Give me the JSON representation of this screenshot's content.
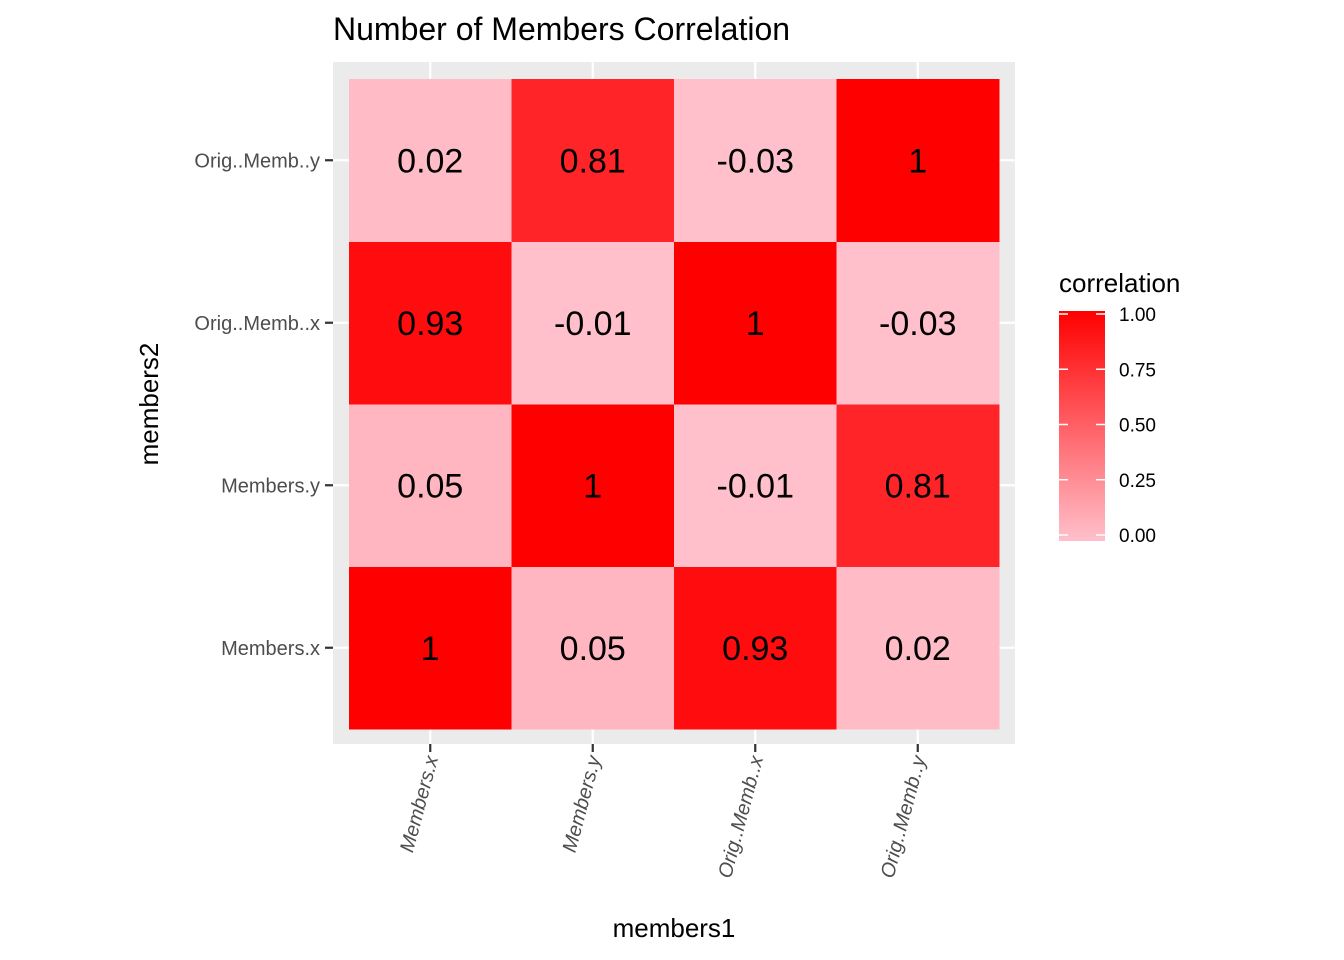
{
  "chart_data": {
    "type": "heatmap",
    "title": "Number of Members Correlation",
    "xlabel": "members1",
    "ylabel": "members2",
    "x_categories": [
      "Members.x",
      "Members.y",
      "Orig..Memb..x",
      "Orig..Memb..y"
    ],
    "y_categories": [
      "Members.x",
      "Members.y",
      "Orig..Memb..x",
      "Orig..Memb..y"
    ],
    "values": [
      [
        1,
        0.05,
        0.93,
        0.02
      ],
      [
        0.05,
        1,
        -0.01,
        0.81
      ],
      [
        0.93,
        -0.01,
        1,
        -0.03
      ],
      [
        0.02,
        0.81,
        -0.03,
        1
      ]
    ],
    "cell_labels": [
      [
        "1",
        "0.05",
        "0.93",
        "0.02"
      ],
      [
        "0.05",
        "1",
        "-0.01",
        "0.81"
      ],
      [
        "0.93",
        "-0.01",
        "1",
        "-0.03"
      ],
      [
        "0.02",
        "0.81",
        "-0.03",
        "1"
      ]
    ],
    "legend": {
      "title": "correlation",
      "placement": "right",
      "ticks": [
        "0.00",
        "0.25",
        "0.50",
        "0.75",
        "1.00"
      ],
      "range": [
        0,
        1
      ],
      "low_color": "#ffc0cb",
      "high_color": "#ff0000"
    },
    "panel_background": "#ebebeb",
    "grid_color": "#ffffff",
    "grid": true
  }
}
